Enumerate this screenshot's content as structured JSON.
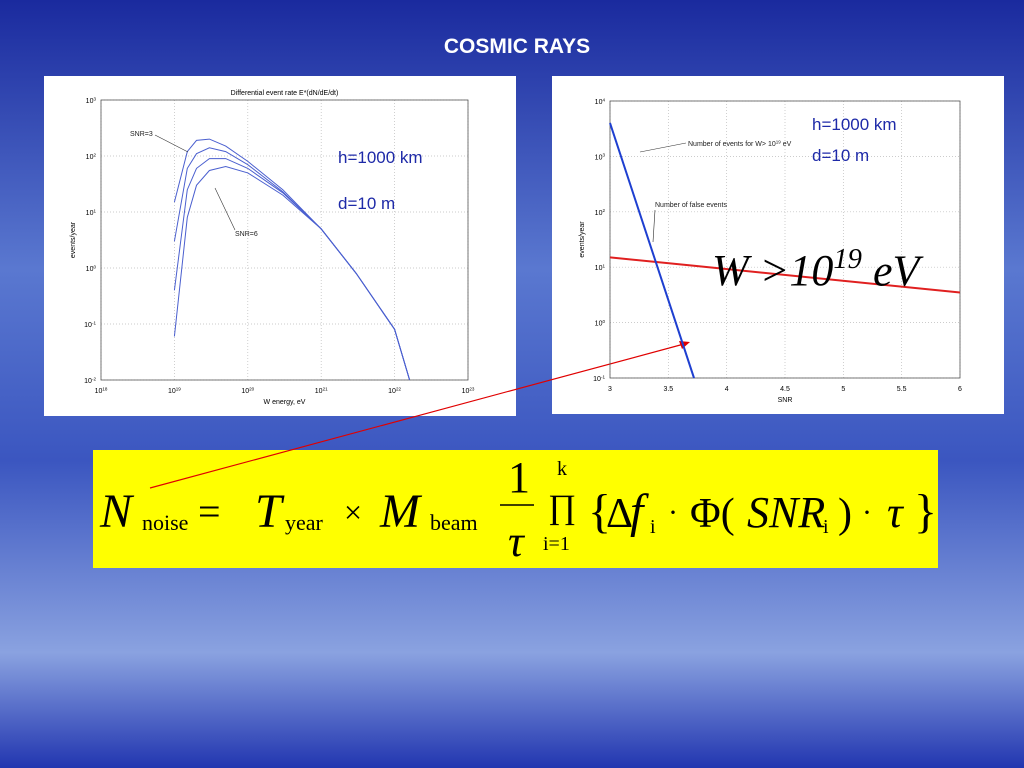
{
  "title": "COSMIC RAYS",
  "chart_data": [
    {
      "type": "line",
      "title": "Differential event rate E*(dN/dE/dt)",
      "xlabel": "W energy, eV",
      "ylabel": "events/year",
      "xscale": "log",
      "yscale": "log",
      "grid": true,
      "x": [
        1e+19,
        1.5e+19,
        2e+19,
        3e+19,
        5e+19,
        1e+20,
        3e+20,
        1e+21,
        3e+21,
        1e+22,
        1.6e+22
      ],
      "series": [
        {
          "color": "#4a5fcf",
          "values": [
            15,
            120,
            190,
            200,
            150,
            80,
            25,
            5,
            0.8,
            0.08,
            0.01
          ]
        },
        {
          "color": "#4a5fcf",
          "values": [
            3,
            60,
            110,
            140,
            120,
            70,
            23,
            5,
            0.8,
            0.08,
            0.01
          ]
        },
        {
          "color": "#4a5fcf",
          "values": [
            0.4,
            25,
            60,
            90,
            90,
            60,
            22,
            5,
            0.8,
            0.08,
            0.01
          ]
        },
        {
          "color": "#4a5fcf",
          "values": [
            0.06,
            8,
            30,
            55,
            65,
            50,
            20,
            5,
            0.8,
            0.08,
            0.01
          ]
        }
      ],
      "xlim": [
        1e+18,
        1e+23
      ],
      "xticks": [
        {
          "value": 1e+18,
          "label": "10^18"
        },
        {
          "value": 1e+19,
          "label": "10^19"
        },
        {
          "value": 1e+20,
          "label": "10^20"
        },
        {
          "value": 1e+21,
          "label": "10^21"
        },
        {
          "value": 1e+22,
          "label": "10^22"
        },
        {
          "value": 1e+23,
          "label": "10^23"
        }
      ],
      "ylim": [
        0.01,
        1000
      ],
      "yticks": [
        {
          "value": 0.01,
          "label": "10^-2"
        },
        {
          "value": 0.1,
          "label": "10^-1"
        },
        {
          "value": 1,
          "label": "10^0"
        },
        {
          "value": 10,
          "label": "10^1"
        },
        {
          "value": 100,
          "label": "10^2"
        },
        {
          "value": 1000,
          "label": "10^3"
        }
      ],
      "annotations": [
        "SNR=3",
        "SNR=6",
        "h=1000 km",
        "d=10 m"
      ]
    },
    {
      "type": "line",
      "xlabel": "SNR",
      "ylabel": "events/year",
      "yscale": "log",
      "grid": true,
      "x": [
        3,
        3.72,
        6
      ],
      "series": [
        {
          "color": "#e02020",
          "values": [
            15,
            10.6,
            3.5
          ]
        },
        {
          "color": "#1e3fd0",
          "values": [
            4000,
            0.1,
            null
          ]
        }
      ],
      "xlim": [
        3,
        6
      ],
      "xticks": [
        3,
        3.5,
        4,
        4.5,
        5,
        5.5,
        6
      ],
      "ylim": [
        0.1,
        10000
      ],
      "yticks": [
        {
          "value": 0.1,
          "label": "10^-1"
        },
        {
          "value": 1,
          "label": "10^0"
        },
        {
          "value": 10,
          "label": "10^1"
        },
        {
          "value": 100,
          "label": "10^2"
        },
        {
          "value": 1000,
          "label": "10^3"
        },
        {
          "value": 10000,
          "label": "10^4"
        }
      ],
      "annotations": [
        "Number of events for W> 10^19 eV",
        "Number of false events",
        "h=1000 km",
        "d=10 m",
        "W >10^19 eV"
      ]
    }
  ],
  "formula": [
    "N",
    "noise",
    "=",
    "T",
    "year",
    "×",
    "M",
    "beam",
    "1",
    "τ",
    "k",
    "∏",
    "i=1",
    "{",
    "Δ",
    "f",
    "i",
    "·",
    "Φ(",
    "SNR",
    "i",
    ")",
    "·",
    "τ",
    "}"
  ]
}
